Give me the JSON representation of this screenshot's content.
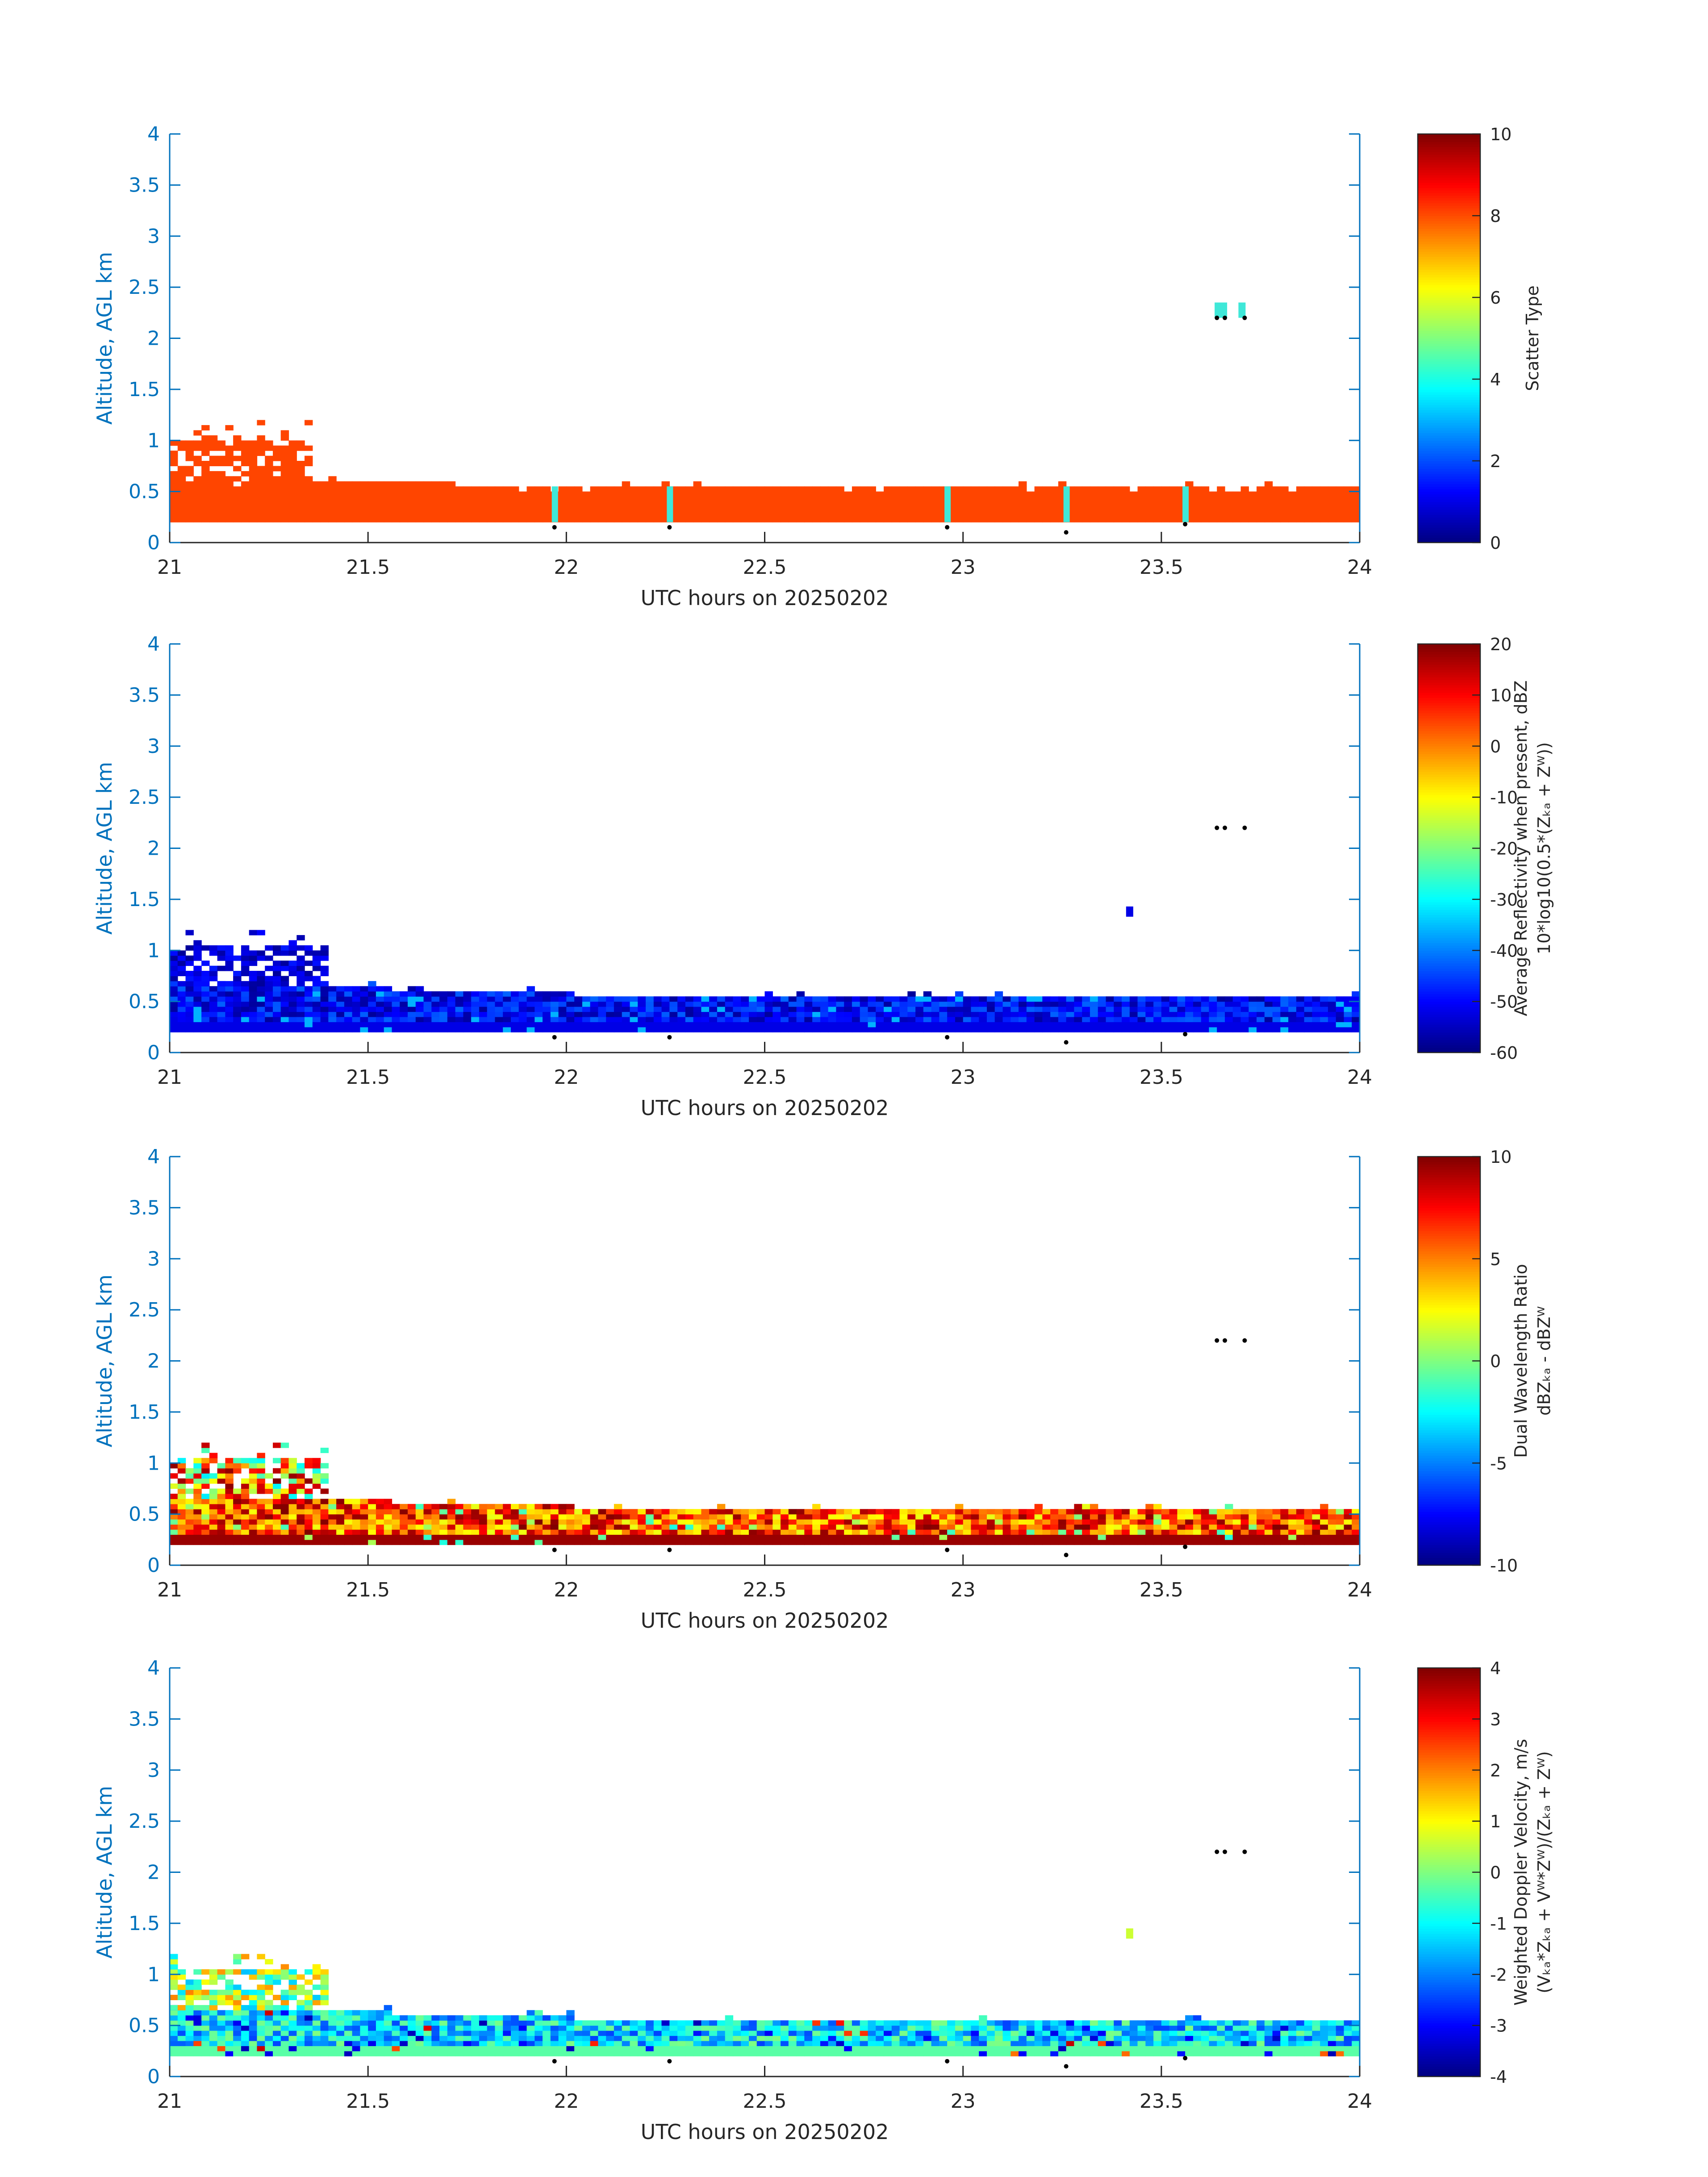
{
  "colors": {
    "axis": "#0072BD",
    "text": "#262626",
    "scatter_orange": "#FF4500",
    "scatter_cyan": "#3FE8D8",
    "marker": "#000000"
  },
  "chart_data": [
    {
      "id": "scatter-type",
      "type": "heatmap",
      "xlabel": "UTC hours on 20250202",
      "ylabel": "Altitude, AGL km",
      "xlim": [
        21,
        24
      ],
      "ylim": [
        0,
        4
      ],
      "xticks": [
        "21",
        "21.5",
        "22",
        "22.5",
        "23",
        "23.5",
        "24"
      ],
      "yticks": [
        "0",
        "0.5",
        "1",
        "1.5",
        "2",
        "2.5",
        "3",
        "3.5",
        "4"
      ],
      "colorbar": {
        "label_lines": [
          "Scatter Type"
        ],
        "range": [
          0,
          10
        ],
        "ticks": [
          "0",
          "2",
          "4",
          "6",
          "8",
          "10"
        ]
      },
      "main_layer": {
        "value": 8.5,
        "bottom_km": 0.2,
        "top_km": 0.55,
        "top_early_km": 0.6,
        "early_until_h": 21.7
      },
      "upper_layer": {
        "value": 8.5,
        "x_range": [
          21.0,
          21.35
        ],
        "top_km": 1.0,
        "max_km": 1.18
      },
      "cyan_columns_h": [
        21.97,
        22.26,
        22.96,
        23.26,
        23.56
      ],
      "cyan_columns_value": 3.8,
      "elevated_cells": [
        [
          23.65,
          2.25
        ],
        [
          23.71,
          2.25
        ]
      ],
      "surface_markers": [
        [
          21.97,
          0.15
        ],
        [
          22.26,
          0.15
        ],
        [
          22.96,
          0.15
        ],
        [
          23.26,
          0.1
        ],
        [
          23.56,
          0.18
        ],
        [
          23.64,
          2.2
        ],
        [
          23.66,
          2.2
        ],
        [
          23.71,
          2.2
        ]
      ]
    },
    {
      "id": "reflectivity",
      "type": "heatmap",
      "xlabel": "UTC hours on 20250202",
      "ylabel": "Altitude, AGL km",
      "xlim": [
        21,
        24
      ],
      "ylim": [
        0,
        4
      ],
      "xticks": [
        "21",
        "21.5",
        "22",
        "22.5",
        "23",
        "23.5",
        "24"
      ],
      "yticks": [
        "0",
        "0.5",
        "1",
        "1.5",
        "2",
        "2.5",
        "3",
        "3.5",
        "4"
      ],
      "colorbar": {
        "label_lines": [
          "Average Reflectivity when present, dBZ",
          "10*log10(0.5*(Zₖₐ + Zᵂ))"
        ],
        "range": [
          -60,
          20
        ],
        "ticks": [
          "-60",
          "-50",
          "-40",
          "-30",
          "-20",
          "-10",
          "0",
          "10",
          "20"
        ]
      },
      "value_range": [
        -58,
        -42
      ],
      "elevated_cells": [
        [
          23.42,
          1.38,
          -52
        ]
      ],
      "surface_markers": [
        [
          21.97,
          0.15
        ],
        [
          22.26,
          0.15
        ],
        [
          22.96,
          0.15
        ],
        [
          23.26,
          0.1
        ],
        [
          23.56,
          0.18
        ],
        [
          23.64,
          2.2
        ],
        [
          23.66,
          2.2
        ],
        [
          23.71,
          2.2
        ]
      ]
    },
    {
      "id": "dwr",
      "type": "heatmap",
      "xlabel": "UTC hours on 20250202",
      "ylabel": "Altitude, AGL km",
      "xlim": [
        21,
        24
      ],
      "ylim": [
        0,
        4
      ],
      "xticks": [
        "21",
        "21.5",
        "22",
        "22.5",
        "23",
        "23.5",
        "24"
      ],
      "yticks": [
        "0",
        "0.5",
        "1",
        "1.5",
        "2",
        "2.5",
        "3",
        "3.5",
        "4"
      ],
      "colorbar": {
        "label_lines": [
          "Dual Wavelength Ratio",
          "dBZₖₐ - dBZᵂ"
        ],
        "range": [
          -10,
          10
        ],
        "ticks": [
          "-10",
          "-5",
          "0",
          "5",
          "10"
        ]
      },
      "value_range": [
        2,
        10
      ],
      "elevated_cells": [],
      "surface_markers": [
        [
          21.97,
          0.15
        ],
        [
          22.26,
          0.15
        ],
        [
          22.96,
          0.15
        ],
        [
          23.26,
          0.1
        ],
        [
          23.56,
          0.18
        ],
        [
          23.64,
          2.2
        ],
        [
          23.66,
          2.2
        ],
        [
          23.71,
          2.2
        ]
      ]
    },
    {
      "id": "doppler",
      "type": "heatmap",
      "xlabel": "UTC hours on 20250202",
      "ylabel": "Altitude, AGL km",
      "xlim": [
        21,
        24
      ],
      "ylim": [
        0,
        4
      ],
      "xticks": [
        "21",
        "21.5",
        "22",
        "22.5",
        "23",
        "23.5",
        "24"
      ],
      "yticks": [
        "0",
        "0.5",
        "1",
        "1.5",
        "2",
        "2.5",
        "3",
        "3.5",
        "4"
      ],
      "colorbar": {
        "label_lines": [
          "Weighted Doppler Velocity, m/s",
          "(Vₖₐ*Zₖₐ + Vᵂ*Zᵂ)/(Zₖₐ + Zᵂ)"
        ],
        "range": [
          -4,
          4
        ],
        "ticks": [
          "-4",
          "-3",
          "-2",
          "-1",
          "0",
          "1",
          "2",
          "3",
          "4"
        ]
      },
      "value_range": [
        -2.5,
        0
      ],
      "elevated_cells": [
        [
          23.42,
          1.4,
          0.6
        ]
      ],
      "surface_markers": [
        [
          21.97,
          0.15
        ],
        [
          22.26,
          0.15
        ],
        [
          22.96,
          0.15
        ],
        [
          23.26,
          0.1
        ],
        [
          23.56,
          0.18
        ],
        [
          23.64,
          2.2
        ],
        [
          23.66,
          2.2
        ],
        [
          23.71,
          2.2
        ]
      ]
    }
  ]
}
